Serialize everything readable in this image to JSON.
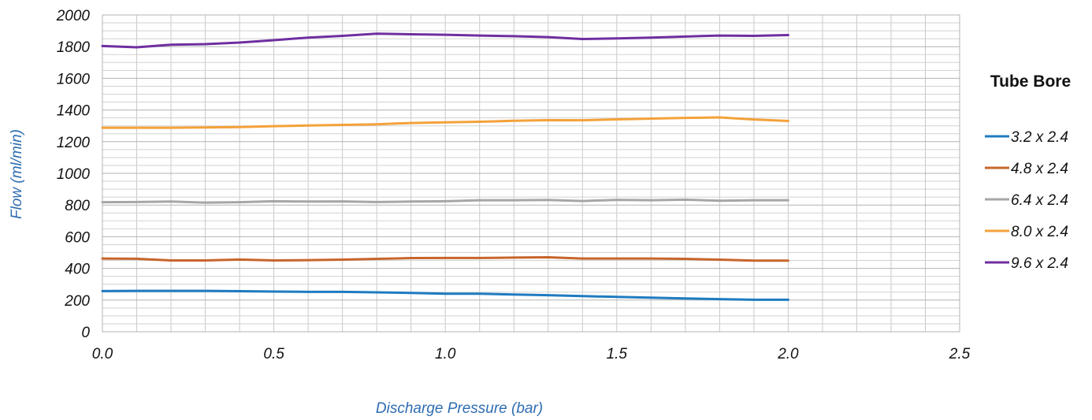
{
  "chart_data": {
    "type": "line",
    "title": "",
    "xlabel": "Discharge Pressure (bar)",
    "ylabel": "Flow (ml/min)",
    "xlim": [
      0,
      2.5
    ],
    "ylim": [
      0,
      2000
    ],
    "x_ticks": [
      "0.0",
      "0.5",
      "1.0",
      "1.5",
      "2.0",
      "2.5"
    ],
    "y_ticks": [
      "0",
      "200",
      "400",
      "600",
      "800",
      "1000",
      "1200",
      "1400",
      "1600",
      "1800",
      "2000"
    ],
    "grid": true,
    "legend_title": "Tube Bore",
    "legend_position": "right",
    "x": [
      0,
      0.1,
      0.2,
      0.3,
      0.4,
      0.5,
      0.6,
      0.7,
      0.8,
      0.9,
      1.0,
      1.1,
      1.2,
      1.3,
      1.4,
      1.5,
      1.6,
      1.7,
      1.8,
      1.9,
      2.0
    ],
    "series": [
      {
        "name": "3.2 x 2.4",
        "color": "#1f7bc1",
        "values": [
          257,
          258,
          258,
          258,
          256,
          254,
          252,
          252,
          249,
          245,
          240,
          240,
          235,
          231,
          225,
          220,
          215,
          210,
          206,
          202,
          202
        ]
      },
      {
        "name": "4.8 x 2.4",
        "color": "#c8652b",
        "values": [
          462,
          461,
          450,
          450,
          456,
          450,
          452,
          455,
          460,
          465,
          466,
          466,
          468,
          470,
          462,
          462,
          462,
          460,
          455,
          449,
          449
        ]
      },
      {
        "name": "6.4 x 2.4",
        "color": "#a6a6a6",
        "values": [
          818,
          819,
          822,
          815,
          818,
          824,
          822,
          823,
          819,
          822,
          824,
          830,
          830,
          832,
          825,
          833,
          830,
          834,
          827,
          830,
          830
        ]
      },
      {
        "name": "8.0 x 2.4",
        "color": "#f4a13a",
        "values": [
          1288,
          1288,
          1288,
          1290,
          1292,
          1298,
          1302,
          1306,
          1310,
          1318,
          1322,
          1326,
          1332,
          1336,
          1335,
          1341,
          1346,
          1350,
          1353,
          1340,
          1331
        ]
      },
      {
        "name": "9.6 x 2.4",
        "color": "#6f2fa0",
        "values": [
          1804,
          1796,
          1812,
          1816,
          1826,
          1841,
          1857,
          1868,
          1882,
          1878,
          1875,
          1870,
          1866,
          1860,
          1848,
          1852,
          1857,
          1864,
          1870,
          1868,
          1873
        ]
      }
    ]
  }
}
